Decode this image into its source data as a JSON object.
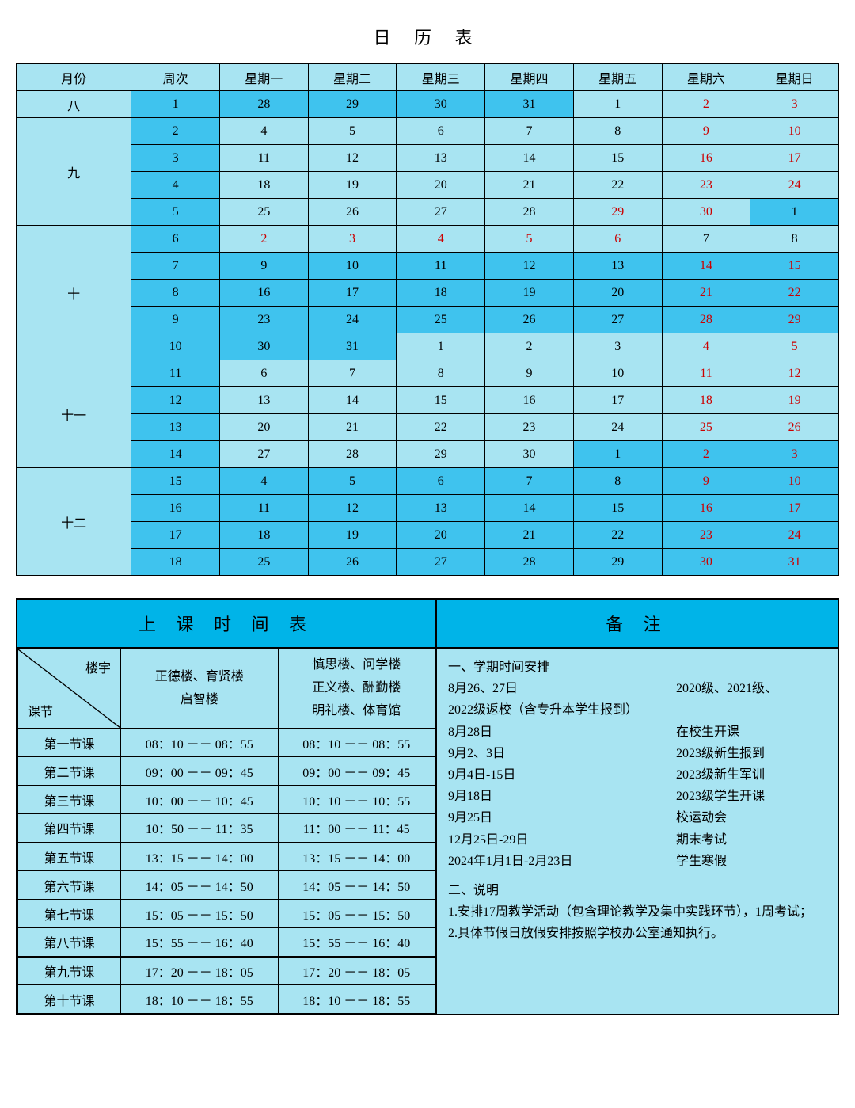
{
  "title": "日 历 表",
  "calendar": {
    "headers": [
      "月份",
      "周次",
      "星期一",
      "星期二",
      "星期三",
      "星期四",
      "星期五",
      "星期六",
      "星期日"
    ],
    "months": [
      {
        "label": "八",
        "rows": [
          {
            "week": 1,
            "weekBg": "mid",
            "days": [
              {
                "v": "28",
                "bg": "mid"
              },
              {
                "v": "29",
                "bg": "mid"
              },
              {
                "v": "30",
                "bg": "mid"
              },
              {
                "v": "31",
                "bg": "mid"
              },
              {
                "v": "1",
                "bg": "light"
              },
              {
                "v": "2",
                "bg": "light",
                "red": true
              },
              {
                "v": "3",
                "bg": "light",
                "red": true
              }
            ]
          }
        ]
      },
      {
        "label": "九",
        "rows": [
          {
            "week": 2,
            "weekBg": "mid",
            "days": [
              {
                "v": "4",
                "bg": "light"
              },
              {
                "v": "5",
                "bg": "light"
              },
              {
                "v": "6",
                "bg": "light"
              },
              {
                "v": "7",
                "bg": "light"
              },
              {
                "v": "8",
                "bg": "light"
              },
              {
                "v": "9",
                "bg": "light",
                "red": true
              },
              {
                "v": "10",
                "bg": "light",
                "red": true
              }
            ]
          },
          {
            "week": 3,
            "weekBg": "mid",
            "days": [
              {
                "v": "11",
                "bg": "light"
              },
              {
                "v": "12",
                "bg": "light"
              },
              {
                "v": "13",
                "bg": "light"
              },
              {
                "v": "14",
                "bg": "light"
              },
              {
                "v": "15",
                "bg": "light"
              },
              {
                "v": "16",
                "bg": "light",
                "red": true
              },
              {
                "v": "17",
                "bg": "light",
                "red": true
              }
            ]
          },
          {
            "week": 4,
            "weekBg": "mid",
            "days": [
              {
                "v": "18",
                "bg": "light"
              },
              {
                "v": "19",
                "bg": "light"
              },
              {
                "v": "20",
                "bg": "light"
              },
              {
                "v": "21",
                "bg": "light"
              },
              {
                "v": "22",
                "bg": "light"
              },
              {
                "v": "23",
                "bg": "light",
                "red": true
              },
              {
                "v": "24",
                "bg": "light",
                "red": true
              }
            ]
          },
          {
            "week": 5,
            "weekBg": "mid",
            "days": [
              {
                "v": "25",
                "bg": "light"
              },
              {
                "v": "26",
                "bg": "light"
              },
              {
                "v": "27",
                "bg": "light"
              },
              {
                "v": "28",
                "bg": "light"
              },
              {
                "v": "29",
                "bg": "light",
                "red": true
              },
              {
                "v": "30",
                "bg": "light",
                "red": true
              },
              {
                "v": "1",
                "bg": "mid"
              }
            ]
          }
        ]
      },
      {
        "label": "十",
        "rows": [
          {
            "week": 6,
            "weekBg": "mid",
            "days": [
              {
                "v": "2",
                "bg": "light",
                "red": true
              },
              {
                "v": "3",
                "bg": "light",
                "red": true
              },
              {
                "v": "4",
                "bg": "light",
                "red": true
              },
              {
                "v": "5",
                "bg": "light",
                "red": true
              },
              {
                "v": "6",
                "bg": "light",
                "red": true
              },
              {
                "v": "7",
                "bg": "light"
              },
              {
                "v": "8",
                "bg": "light"
              }
            ]
          },
          {
            "week": 7,
            "weekBg": "mid",
            "days": [
              {
                "v": "9",
                "bg": "mid"
              },
              {
                "v": "10",
                "bg": "mid"
              },
              {
                "v": "11",
                "bg": "mid"
              },
              {
                "v": "12",
                "bg": "mid"
              },
              {
                "v": "13",
                "bg": "mid"
              },
              {
                "v": "14",
                "bg": "mid",
                "red": true
              },
              {
                "v": "15",
                "bg": "mid",
                "red": true
              }
            ]
          },
          {
            "week": 8,
            "weekBg": "mid",
            "days": [
              {
                "v": "16",
                "bg": "mid"
              },
              {
                "v": "17",
                "bg": "mid"
              },
              {
                "v": "18",
                "bg": "mid"
              },
              {
                "v": "19",
                "bg": "mid"
              },
              {
                "v": "20",
                "bg": "mid"
              },
              {
                "v": "21",
                "bg": "mid",
                "red": true
              },
              {
                "v": "22",
                "bg": "mid",
                "red": true
              }
            ]
          },
          {
            "week": 9,
            "weekBg": "mid",
            "days": [
              {
                "v": "23",
                "bg": "mid"
              },
              {
                "v": "24",
                "bg": "mid"
              },
              {
                "v": "25",
                "bg": "mid"
              },
              {
                "v": "26",
                "bg": "mid"
              },
              {
                "v": "27",
                "bg": "mid"
              },
              {
                "v": "28",
                "bg": "mid",
                "red": true
              },
              {
                "v": "29",
                "bg": "mid",
                "red": true
              }
            ]
          },
          {
            "week": 10,
            "weekBg": "mid",
            "days": [
              {
                "v": "30",
                "bg": "mid"
              },
              {
                "v": "31",
                "bg": "mid"
              },
              {
                "v": "1",
                "bg": "light"
              },
              {
                "v": "2",
                "bg": "light"
              },
              {
                "v": "3",
                "bg": "light"
              },
              {
                "v": "4",
                "bg": "light",
                "red": true
              },
              {
                "v": "5",
                "bg": "light",
                "red": true
              }
            ]
          }
        ]
      },
      {
        "label": "十一",
        "rows": [
          {
            "week": 11,
            "weekBg": "mid",
            "days": [
              {
                "v": "6",
                "bg": "light"
              },
              {
                "v": "7",
                "bg": "light"
              },
              {
                "v": "8",
                "bg": "light"
              },
              {
                "v": "9",
                "bg": "light"
              },
              {
                "v": "10",
                "bg": "light"
              },
              {
                "v": "11",
                "bg": "light",
                "red": true
              },
              {
                "v": "12",
                "bg": "light",
                "red": true
              }
            ]
          },
          {
            "week": 12,
            "weekBg": "mid",
            "days": [
              {
                "v": "13",
                "bg": "light"
              },
              {
                "v": "14",
                "bg": "light"
              },
              {
                "v": "15",
                "bg": "light"
              },
              {
                "v": "16",
                "bg": "light"
              },
              {
                "v": "17",
                "bg": "light"
              },
              {
                "v": "18",
                "bg": "light",
                "red": true
              },
              {
                "v": "19",
                "bg": "light",
                "red": true
              }
            ]
          },
          {
            "week": 13,
            "weekBg": "mid",
            "days": [
              {
                "v": "20",
                "bg": "light"
              },
              {
                "v": "21",
                "bg": "light"
              },
              {
                "v": "22",
                "bg": "light"
              },
              {
                "v": "23",
                "bg": "light"
              },
              {
                "v": "24",
                "bg": "light"
              },
              {
                "v": "25",
                "bg": "light",
                "red": true
              },
              {
                "v": "26",
                "bg": "light",
                "red": true
              }
            ]
          },
          {
            "week": 14,
            "weekBg": "mid",
            "days": [
              {
                "v": "27",
                "bg": "light"
              },
              {
                "v": "28",
                "bg": "light"
              },
              {
                "v": "29",
                "bg": "light"
              },
              {
                "v": "30",
                "bg": "light"
              },
              {
                "v": "1",
                "bg": "mid"
              },
              {
                "v": "2",
                "bg": "mid",
                "red": true
              },
              {
                "v": "3",
                "bg": "mid",
                "red": true
              }
            ]
          }
        ]
      },
      {
        "label": "十二",
        "rows": [
          {
            "week": 15,
            "weekBg": "mid",
            "days": [
              {
                "v": "4",
                "bg": "mid"
              },
              {
                "v": "5",
                "bg": "mid"
              },
              {
                "v": "6",
                "bg": "mid"
              },
              {
                "v": "7",
                "bg": "mid"
              },
              {
                "v": "8",
                "bg": "mid"
              },
              {
                "v": "9",
                "bg": "mid",
                "red": true
              },
              {
                "v": "10",
                "bg": "mid",
                "red": true
              }
            ]
          },
          {
            "week": 16,
            "weekBg": "mid",
            "days": [
              {
                "v": "11",
                "bg": "mid"
              },
              {
                "v": "12",
                "bg": "mid"
              },
              {
                "v": "13",
                "bg": "mid"
              },
              {
                "v": "14",
                "bg": "mid"
              },
              {
                "v": "15",
                "bg": "mid"
              },
              {
                "v": "16",
                "bg": "mid",
                "red": true
              },
              {
                "v": "17",
                "bg": "mid",
                "red": true
              }
            ]
          },
          {
            "week": 17,
            "weekBg": "mid",
            "days": [
              {
                "v": "18",
                "bg": "mid"
              },
              {
                "v": "19",
                "bg": "mid"
              },
              {
                "v": "20",
                "bg": "mid"
              },
              {
                "v": "21",
                "bg": "mid"
              },
              {
                "v": "22",
                "bg": "mid"
              },
              {
                "v": "23",
                "bg": "mid",
                "red": true
              },
              {
                "v": "24",
                "bg": "mid",
                "red": true
              }
            ]
          },
          {
            "week": 18,
            "weekBg": "mid",
            "days": [
              {
                "v": "25",
                "bg": "mid"
              },
              {
                "v": "26",
                "bg": "mid"
              },
              {
                "v": "27",
                "bg": "mid"
              },
              {
                "v": "28",
                "bg": "mid"
              },
              {
                "v": "29",
                "bg": "mid"
              },
              {
                "v": "30",
                "bg": "mid",
                "red": true
              },
              {
                "v": "31",
                "bg": "mid",
                "red": true
              }
            ]
          }
        ]
      }
    ]
  },
  "schedule": {
    "title": "上 课 时 间 表",
    "diagTop": "楼宇",
    "diagBot": "课节",
    "buildingA": "正德楼、育贤楼\n启智楼",
    "buildingB": "慎思楼、问学楼\n正义楼、酬勤楼\n明礼楼、体育馆",
    "rows": [
      {
        "p": "第一节课",
        "a": "08：10 －－ 08：55",
        "b": "08：10 －－ 08：55",
        "sep": false
      },
      {
        "p": "第二节课",
        "a": "09：00 －－ 09：45",
        "b": "09：00 －－ 09：45",
        "sep": false
      },
      {
        "p": "第三节课",
        "a": "10：00 －－ 10：45",
        "b": "10：10 －－ 10：55",
        "sep": false
      },
      {
        "p": "第四节课",
        "a": "10：50 －－ 11：35",
        "b": "11：00 －－ 11：45",
        "sep": false
      },
      {
        "p": "第五节课",
        "a": "13：15 －－ 14：00",
        "b": "13：15 －－ 14：00",
        "sep": true
      },
      {
        "p": "第六节课",
        "a": "14：05 －－ 14：50",
        "b": "14：05 －－ 14：50",
        "sep": false
      },
      {
        "p": "第七节课",
        "a": "15：05 －－ 15：50",
        "b": "15：05 －－ 15：50",
        "sep": false
      },
      {
        "p": "第八节课",
        "a": "15：55 －－ 16：40",
        "b": "15：55 －－ 16：40",
        "sep": false
      },
      {
        "p": "第九节课",
        "a": "17：20 －－ 18：05",
        "b": "17：20 －－ 18：05",
        "sep": true
      },
      {
        "p": "第十节课",
        "a": "18：10 －－ 18：55",
        "b": "18：10 －－ 18：55",
        "sep": false
      }
    ]
  },
  "notes": {
    "title": "备 注",
    "section1Title": "一、学期时间安排",
    "items": [
      {
        "l": "8月26、27日",
        "r": "2020级、2021级、"
      },
      {
        "l": "2022级返校（含专升本学生报到）",
        "r": ""
      },
      {
        "l": "8月28日",
        "r": "在校生开课"
      },
      {
        "l": "9月2、3日",
        "r": "2023级新生报到"
      },
      {
        "l": "9月4日-15日",
        "r": "2023级新生军训"
      },
      {
        "l": "9月18日",
        "r": "2023级学生开课"
      },
      {
        "l": "9月25日",
        "r": "校运动会"
      },
      {
        "l": "12月25日-29日",
        "r": "期末考试"
      },
      {
        "l": "2024年1月1日-2月23日",
        "r": "学生寒假"
      }
    ],
    "section2Title": "二、说明",
    "para1": "1.安排17周教学活动（包含理论教学及集中实践环节），1周考试；",
    "para2": "2.具体节假日放假安排按照学校办公室通知执行。"
  },
  "colors": {
    "headerBg": "#00b4e8",
    "lightBg": "#a8e4f2",
    "midBg": "#3fc3ee",
    "red": "#cc0000",
    "border": "#000000"
  }
}
